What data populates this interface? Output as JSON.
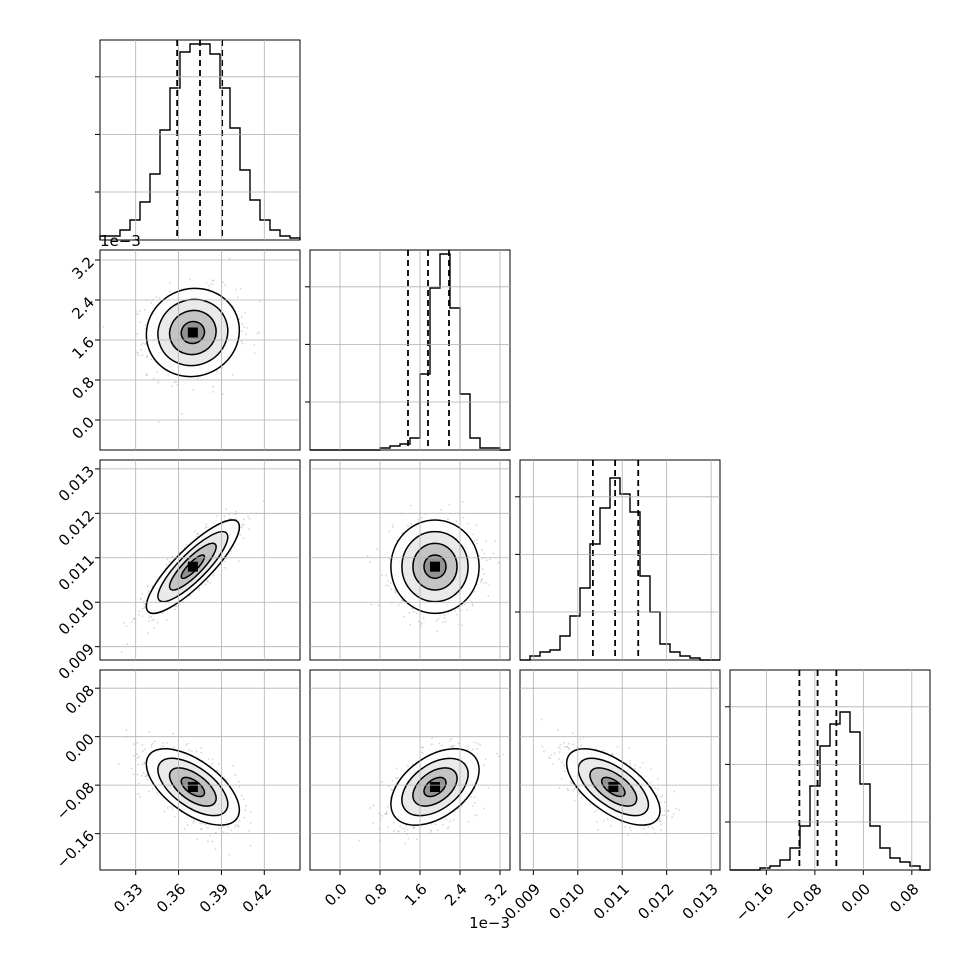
{
  "chart_data": {
    "type": "corner",
    "parameters": [
      {
        "range": [
          0.305,
          0.445
        ],
        "ticks": [
          0.33,
          0.36,
          0.39,
          0.42
        ],
        "tick_labels": [
          "0.33",
          "0.36",
          "0.39",
          "0.42"
        ],
        "quantiles": [
          0.359,
          0.375,
          0.3905
        ],
        "peak": [
          0.37,
          0.382
        ],
        "sd": [
          0.0155,
          0.0155
        ]
      },
      {
        "range": [
          -0.0006,
          0.0034
        ],
        "ticks": [
          0.0,
          0.0008,
          0.0016,
          0.0024,
          0.0032
        ],
        "tick_labels": [
          "0.0",
          "0.8",
          "1.6",
          "2.4",
          "3.2"
        ],
        "offset_text": "1e−3",
        "quantiles": [
          0.00136,
          0.00176,
          0.00218
        ],
        "peak": [
          0.0019,
          0.00175
        ],
        "sd": [
          0.00042,
          0.00042
        ]
      },
      {
        "range": [
          0.0087,
          0.0132
        ],
        "ticks": [
          0.009,
          0.01,
          0.011,
          0.012,
          0.013
        ],
        "tick_labels": [
          "0.009",
          "0.010",
          "0.011",
          "0.012",
          "0.013"
        ],
        "quantiles": [
          0.01034,
          0.01084,
          0.01136
        ],
        "peak": [
          0.0108,
          0.0108
        ],
        "sd": [
          0.0005,
          0.0005
        ]
      },
      {
        "range": [
          -0.22,
          0.11
        ],
        "ticks": [
          -0.16,
          -0.08,
          0.0,
          0.08
        ],
        "tick_labels": [
          "−0.16",
          "−0.08",
          "0.00",
          "0.08"
        ],
        "quantiles": [
          -0.1055,
          -0.0755,
          -0.0445
        ],
        "peak": [
          -0.075,
          -0.083
        ],
        "sd": [
          0.03,
          0.03
        ]
      }
    ],
    "correlations": [
      [
        1.0,
        0.05,
        0.85,
        -0.6
      ],
      [
        0.05,
        1.0,
        0.0,
        0.45
      ],
      [
        0.85,
        0.0,
        1.0,
        -0.62
      ],
      [
        -0.6,
        0.45,
        -0.62,
        1.0
      ]
    ],
    "histograms": [
      [
        0.02,
        0.02,
        0.05,
        0.1,
        0.19,
        0.33,
        0.55,
        0.76,
        0.94,
        0.98,
        0.98,
        0.93,
        0.76,
        0.56,
        0.35,
        0.2,
        0.1,
        0.05,
        0.02,
        0.01
      ],
      [
        0.0,
        0.0,
        0.0,
        0.0,
        0.0,
        0.0,
        0.0,
        0.01,
        0.02,
        0.03,
        0.06,
        0.38,
        0.81,
        0.98,
        0.71,
        0.28,
        0.06,
        0.01,
        0.01,
        0.0
      ],
      [
        0.0,
        0.02,
        0.04,
        0.05,
        0.12,
        0.22,
        0.36,
        0.58,
        0.76,
        0.91,
        0.83,
        0.74,
        0.42,
        0.24,
        0.08,
        0.04,
        0.02,
        0.01,
        0.0,
        0.0
      ],
      [
        0.0,
        0.0,
        0.0,
        0.01,
        0.02,
        0.05,
        0.11,
        0.22,
        0.42,
        0.62,
        0.73,
        0.79,
        0.69,
        0.43,
        0.22,
        0.11,
        0.06,
        0.04,
        0.02,
        0.0
      ]
    ],
    "contour_levels_sigma": [
      0.5,
      1.0,
      1.5,
      2.0
    ],
    "grid": true,
    "legend": "none"
  }
}
